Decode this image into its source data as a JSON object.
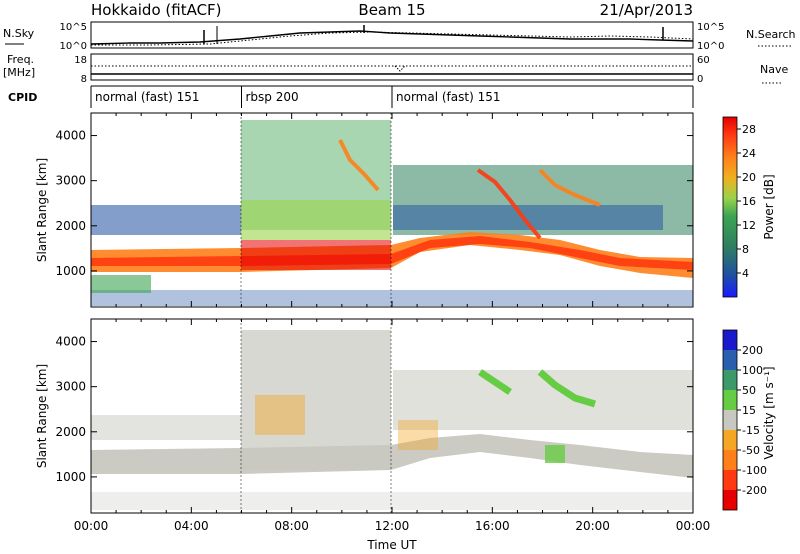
{
  "header": {
    "station": "Hokkaido (fitACF)",
    "beam": "Beam 15",
    "date": "21/Apr/2013"
  },
  "noise_panel": {
    "left_label": "N.Sky",
    "left_ticks": [
      "10^5",
      "10^0"
    ],
    "right_ticks": [
      "10^5",
      "10^0"
    ],
    "right_label": "N.Search",
    "right_legend_style": "dotted"
  },
  "freq_panel": {
    "left_label_line1": "Freq.",
    "left_label_line2": "[MHz]",
    "left_ticks": [
      "18",
      "8"
    ],
    "right_ticks": [
      "60",
      "0"
    ],
    "right_label": "Nave",
    "right_legend_style": "dotted"
  },
  "cpid_panel": {
    "label": "CPID",
    "segments": [
      {
        "start_hour": 0,
        "end_hour": 6,
        "label": "normal (fast) 151"
      },
      {
        "start_hour": 6,
        "end_hour": 12,
        "label": "rbsp 200"
      },
      {
        "start_hour": 12,
        "end_hour": 24,
        "label": "normal (fast) 151"
      }
    ]
  },
  "chart_data": [
    {
      "type": "heatmap",
      "name_printed": "",
      "xlabel": "",
      "ylabel": "Slant Range [km]",
      "xlim_hours": [
        0,
        24
      ],
      "ylim_km": [
        200,
        4500
      ],
      "y_ticks": [
        "1000",
        "2000",
        "3000",
        "4000"
      ],
      "colorbar": {
        "label": "Power [dB]",
        "range": [
          0,
          30
        ],
        "ticks": [
          "28",
          "24",
          "20",
          "16",
          "12",
          "8",
          "4"
        ],
        "tick_values": [
          28,
          24,
          20,
          16,
          12,
          8,
          4
        ],
        "colors": [
          "#1a1aff",
          "#1f4fa3",
          "#2f7f5f",
          "#3ca552",
          "#9bd34a",
          "#f0b020",
          "#ff7f1a",
          "#ff3a10",
          "#e60000"
        ]
      },
      "features": [
        {
          "description": "main band",
          "hours": [
            0,
            24
          ],
          "range_km": [
            900,
            1400
          ],
          "level_db": 24
        },
        {
          "description": "upper scatter",
          "hours": [
            0,
            6
          ],
          "range_km": [
            1500,
            2200
          ],
          "level_db": 8
        },
        {
          "description": "rbsp mixed",
          "hours": [
            6,
            12
          ],
          "range_km": [
            1000,
            4400
          ],
          "level_db": 16
        },
        {
          "description": "E-region echoes",
          "hours": [
            12,
            24
          ],
          "range_km": [
            1500,
            3300
          ],
          "level_db": 12
        }
      ]
    },
    {
      "type": "heatmap",
      "name_printed": "",
      "xlabel": "Time UT",
      "ylabel": "Slant Range [km]",
      "xlim_hours": [
        0,
        24
      ],
      "ylim_km": [
        200,
        4500
      ],
      "x_ticks": [
        "00:00",
        "04:00",
        "08:00",
        "12:00",
        "16:00",
        "20:00",
        "00:00"
      ],
      "y_ticks": [
        "1000",
        "2000",
        "3000",
        "4000"
      ],
      "colorbar": {
        "label": "Velocity [m s⁻¹]",
        "range": [
          -250,
          250
        ],
        "ticks": [
          "200",
          "100",
          "50",
          "15",
          "-15",
          "-50",
          "-100",
          "-200"
        ],
        "colors": [
          "#1a1acc",
          "#2a5fb0",
          "#3c9a6a",
          "#66cc44",
          "#c8c8c0",
          "#f5a623",
          "#ff7f1a",
          "#ff3a10",
          "#e60000"
        ]
      },
      "features": [
        {
          "description": "ground scatter",
          "hours": [
            0,
            24
          ],
          "range_km": [
            900,
            1500
          ],
          "velocity_ms": 0
        },
        {
          "description": "positive velocities",
          "hours": [
            14,
            18
          ],
          "range_km": [
            2500,
            3400
          ],
          "velocity_ms": 60
        }
      ]
    }
  ],
  "x_axis_label": "Time UT"
}
